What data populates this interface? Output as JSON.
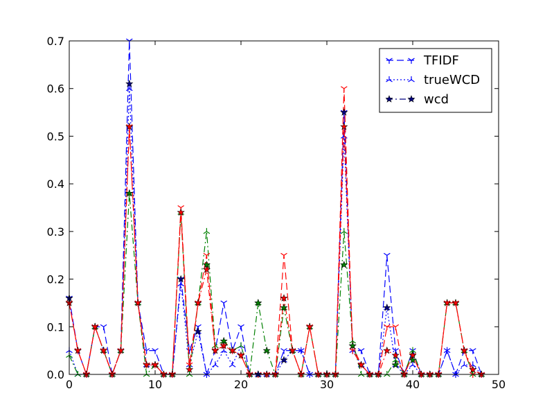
{
  "chart_data": {
    "type": "line",
    "title": "",
    "xlabel": "",
    "ylabel": "",
    "xlim": [
      0,
      50
    ],
    "ylim": [
      0,
      0.7
    ],
    "xticks": [
      "0",
      "10",
      "20",
      "30",
      "40",
      "50"
    ],
    "yticks": [
      "0.0",
      "0.1",
      "0.2",
      "0.3",
      "0.4",
      "0.5",
      "0.6",
      "0.7"
    ],
    "grid": false,
    "legend_position": "top-right",
    "legend": [
      {
        "label": "TFIDF",
        "color": "#0000ff",
        "marker": "tri_down",
        "dash": "dashed"
      },
      {
        "label": "trueWCD",
        "color": "#0000ff",
        "marker": "tri_up",
        "dash": "dotted"
      },
      {
        "label": "wcd",
        "color": "#000080",
        "marker": "star",
        "dash": "dashdot"
      }
    ],
    "x": [
      0,
      1,
      2,
      3,
      4,
      5,
      6,
      7,
      8,
      9,
      10,
      11,
      12,
      13,
      14,
      15,
      16,
      17,
      18,
      19,
      20,
      21,
      22,
      23,
      24,
      25,
      26,
      27,
      28,
      29,
      30,
      31,
      32,
      33,
      34,
      35,
      36,
      37,
      38,
      39,
      40,
      41,
      42,
      43,
      44,
      45,
      46,
      47,
      48
    ],
    "series": [
      {
        "color": "#0000ff",
        "dash": "dashed",
        "marker": "tri_down",
        "values": [
          0.16,
          0.05,
          0.0,
          0.1,
          0.1,
          0.0,
          0.05,
          0.7,
          0.15,
          0.05,
          0.05,
          0.0,
          0.0,
          0.2,
          0.05,
          0.1,
          0.0,
          0.05,
          0.15,
          0.05,
          0.1,
          0.0,
          0.0,
          0.0,
          0.0,
          0.05,
          0.05,
          0.05,
          0.0,
          0.0,
          0.0,
          0.0,
          0.55,
          0.05,
          0.05,
          0.0,
          0.0,
          0.25,
          0.05,
          0.0,
          0.05,
          0.0,
          0.0,
          0.0,
          0.05,
          0.0,
          0.05,
          0.05,
          0.0
        ]
      },
      {
        "color": "#0000ff",
        "dash": "dotted",
        "marker": "tri_up",
        "values": [
          0.05,
          0.0,
          0.0,
          0.1,
          0.05,
          0.0,
          0.05,
          0.6,
          0.15,
          0.02,
          0.02,
          0.0,
          0.0,
          0.19,
          0.02,
          0.09,
          0.0,
          0.02,
          0.05,
          0.02,
          0.06,
          0.0,
          0.0,
          0.0,
          0.0,
          0.03,
          0.05,
          0.05,
          0.0,
          0.0,
          0.0,
          0.0,
          0.5,
          0.05,
          0.02,
          0.0,
          0.0,
          0.14,
          0.02,
          0.0,
          0.02,
          0.0,
          0.0,
          0.0,
          0.05,
          0.0,
          0.02,
          0.02,
          0.0
        ]
      },
      {
        "color": "#008000",
        "dash": "dashdot",
        "marker": "tri_up",
        "values": [
          0.04,
          0.0,
          0.0,
          0.1,
          0.05,
          0.0,
          0.05,
          0.38,
          0.15,
          0.0,
          0.02,
          0.0,
          0.0,
          0.34,
          0.0,
          0.15,
          0.3,
          0.06,
          0.07,
          0.05,
          0.06,
          0.0,
          0.15,
          0.05,
          0.0,
          0.14,
          0.05,
          0.0,
          0.1,
          0.0,
          0.0,
          0.0,
          0.3,
          0.07,
          0.0,
          0.0,
          0.0,
          0.0,
          0.03,
          0.0,
          0.05,
          0.0,
          0.0,
          0.0,
          0.15,
          0.15,
          0.05,
          0.0,
          0.0
        ]
      },
      {
        "color": "#ff0000",
        "dash": "dashed",
        "marker": "tri_down",
        "values": [
          0.15,
          0.05,
          0.0,
          0.1,
          0.05,
          0.0,
          0.05,
          0.52,
          0.15,
          0.02,
          0.02,
          0.0,
          0.0,
          0.35,
          0.02,
          0.15,
          0.25,
          0.05,
          0.06,
          0.05,
          0.04,
          0.0,
          0.0,
          0.0,
          0.0,
          0.25,
          0.05,
          0.0,
          0.1,
          0.0,
          0.0,
          0.0,
          0.6,
          0.05,
          0.02,
          0.0,
          0.0,
          0.1,
          0.1,
          0.0,
          0.04,
          0.0,
          0.0,
          0.0,
          0.15,
          0.15,
          0.05,
          0.0,
          0.0
        ]
      },
      {
        "color": "#ff0000",
        "dash": "dashdot",
        "marker": "star",
        "values": [
          0.15,
          0.05,
          0.0,
          0.1,
          0.05,
          0.0,
          0.05,
          0.52,
          0.15,
          0.02,
          0.02,
          0.0,
          0.0,
          0.34,
          0.01,
          0.15,
          0.22,
          0.05,
          0.06,
          0.05,
          0.04,
          0.0,
          0.0,
          0.0,
          0.0,
          0.16,
          0.05,
          0.0,
          0.1,
          0.0,
          0.0,
          0.0,
          0.52,
          0.06,
          0.02,
          0.0,
          0.0,
          0.05,
          0.04,
          0.0,
          0.04,
          0.0,
          0.0,
          0.0,
          0.15,
          0.15,
          0.05,
          0.01,
          0.0
        ]
      }
    ],
    "star_markers": [
      {
        "series": 0,
        "color": "#000080",
        "values": {
          "0": 0.16,
          "7": 0.61,
          "13": 0.2,
          "15": 0.09,
          "22": 0.0,
          "25": 0.03,
          "32": 0.55,
          "37": 0.14
        }
      },
      {
        "series": 2,
        "color": "#008000",
        "values": {
          "7": 0.38,
          "16": 0.23,
          "18": 0.07,
          "22": 0.15,
          "23": 0.05,
          "25": 0.14,
          "32": 0.23,
          "33": 0.06,
          "38": 0.02,
          "40": 0.03
        }
      }
    ]
  }
}
